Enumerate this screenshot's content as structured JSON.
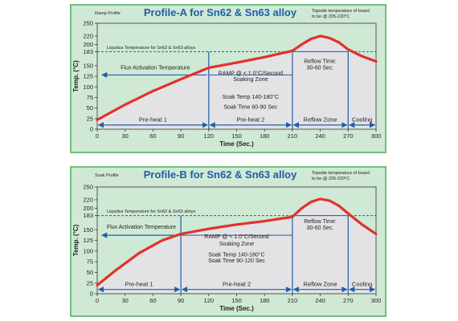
{
  "colors": {
    "panel_bg": "#cfe9d4",
    "panel_border": "#6fbf80",
    "plot_bg": "#e3e3e6",
    "curve": "#e0322b",
    "arrow": "#1f5fa8",
    "title": "#1f5fa8",
    "grid": "#8fa6c8"
  },
  "chart_data": [
    {
      "type": "line",
      "corner_label": "Ramp Profile",
      "title": "Profile-A for Sn62 & Sn63 alloy",
      "top_note": [
        "Topside temperature of board",
        "to be @ 205-220°C"
      ],
      "liquidus_label": "Liquidus Temperature for Sn62 & Sn63 alloys",
      "liquidus_temp": 183,
      "xlabel": "Time (Sec.)",
      "ylabel": "Temp. (°C)",
      "xlim": [
        0,
        300
      ],
      "ylim": [
        0,
        250
      ],
      "xticks": [
        0,
        30,
        60,
        90,
        120,
        150,
        180,
        210,
        240,
        270,
        300
      ],
      "yticks": [
        0,
        25,
        50,
        75,
        100,
        125,
        150,
        183,
        200,
        220,
        250
      ],
      "series": [
        {
          "x": [
            0,
            30,
            60,
            90,
            120,
            150,
            180,
            210,
            220,
            230,
            240,
            250,
            260,
            270,
            285,
            300
          ],
          "values": [
            22,
            58,
            90,
            118,
            145,
            157,
            170,
            185,
            200,
            213,
            220,
            215,
            205,
            188,
            172,
            160
          ]
        }
      ],
      "dividers": [
        120,
        210,
        270
      ],
      "zones": [
        {
          "label": "Pre-heat 1",
          "from": 0,
          "to": 120
        },
        {
          "label": "Pre-heat 2",
          "from": 120,
          "to": 210
        },
        {
          "label": "Reflow Zone",
          "from": 210,
          "to": 270
        },
        {
          "label": "Cooling",
          "from": 270,
          "to": 300
        }
      ],
      "flux_label": "Flux Activation Temperature",
      "flux_arrow": {
        "from": 120,
        "to": 5,
        "temp": 128
      },
      "soak_box": {
        "from": 120,
        "to": 210,
        "lines": [
          "RAMP @ < 1.0°C/Second",
          "Soaking Zone"
        ],
        "label_temps": [
          128,
          114
        ]
      },
      "soak_info": {
        "lines": [
          "Soak Temp 140-180°C",
          "Soak Time 60-90 Sec"
        ],
        "label_temps": [
          72,
          48
        ]
      },
      "reflow_box": {
        "from": 210,
        "to": 270,
        "temp": 183,
        "lines": [
          "Reflow Time:",
          "30-60 Sec."
        ],
        "label_temps": [
          156,
          141
        ]
      }
    },
    {
      "type": "line",
      "corner_label": "Soak Profile",
      "title": "Profile-B for Sn62 & Sn63 alloy",
      "top_note": [
        "Topside temperature of board",
        "to be @ 205-220°C"
      ],
      "liquidus_label": "Liquidus Temperature for Sn62 & Sn63 alloys",
      "liquidus_temp": 183,
      "xlabel": "Time (Sec.)",
      "ylabel": "Temp. (°C)",
      "xlim": [
        0,
        300
      ],
      "ylim": [
        0,
        250
      ],
      "xticks": [
        0,
        30,
        60,
        90,
        120,
        150,
        180,
        210,
        240,
        270,
        300
      ],
      "yticks": [
        0,
        25,
        50,
        75,
        100,
        125,
        150,
        183,
        200,
        220,
        250
      ],
      "series": [
        {
          "x": [
            0,
            20,
            45,
            70,
            90,
            120,
            150,
            180,
            210,
            220,
            230,
            240,
            250,
            260,
            270,
            285,
            300
          ],
          "values": [
            20,
            55,
            95,
            125,
            140,
            152,
            162,
            170,
            180,
            200,
            215,
            222,
            218,
            206,
            188,
            162,
            140
          ]
        }
      ],
      "dividers": [
        90,
        210,
        270
      ],
      "zones": [
        {
          "label": "Pre-heat 1",
          "from": 0,
          "to": 90
        },
        {
          "label": "Pre-heat 2",
          "from": 90,
          "to": 210
        },
        {
          "label": "Reflow Zone",
          "from": 210,
          "to": 270
        },
        {
          "label": "Cooling",
          "from": 270,
          "to": 300
        }
      ],
      "flux_label": "Flux Activation Temperature",
      "flux_arrow": {
        "from": 90,
        "to": 5,
        "temp": 137
      },
      "soak_box": {
        "from": 90,
        "to": 210,
        "lines": [
          "RAMP @ < 1.0°C/Second",
          "Soaking Zone"
        ],
        "label_temps": [
          130,
          113
        ]
      },
      "soak_info": {
        "lines": [
          "Soak Temp 140-180°C",
          "Soak Time 90-120 Sec"
        ],
        "label_temps": [
          87,
          73
        ]
      },
      "reflow_box": {
        "from": 210,
        "to": 270,
        "temp": 183,
        "lines": [
          "Reflow Time:",
          "30-60 Sec."
        ],
        "label_temps": [
          165,
          150
        ]
      }
    }
  ]
}
